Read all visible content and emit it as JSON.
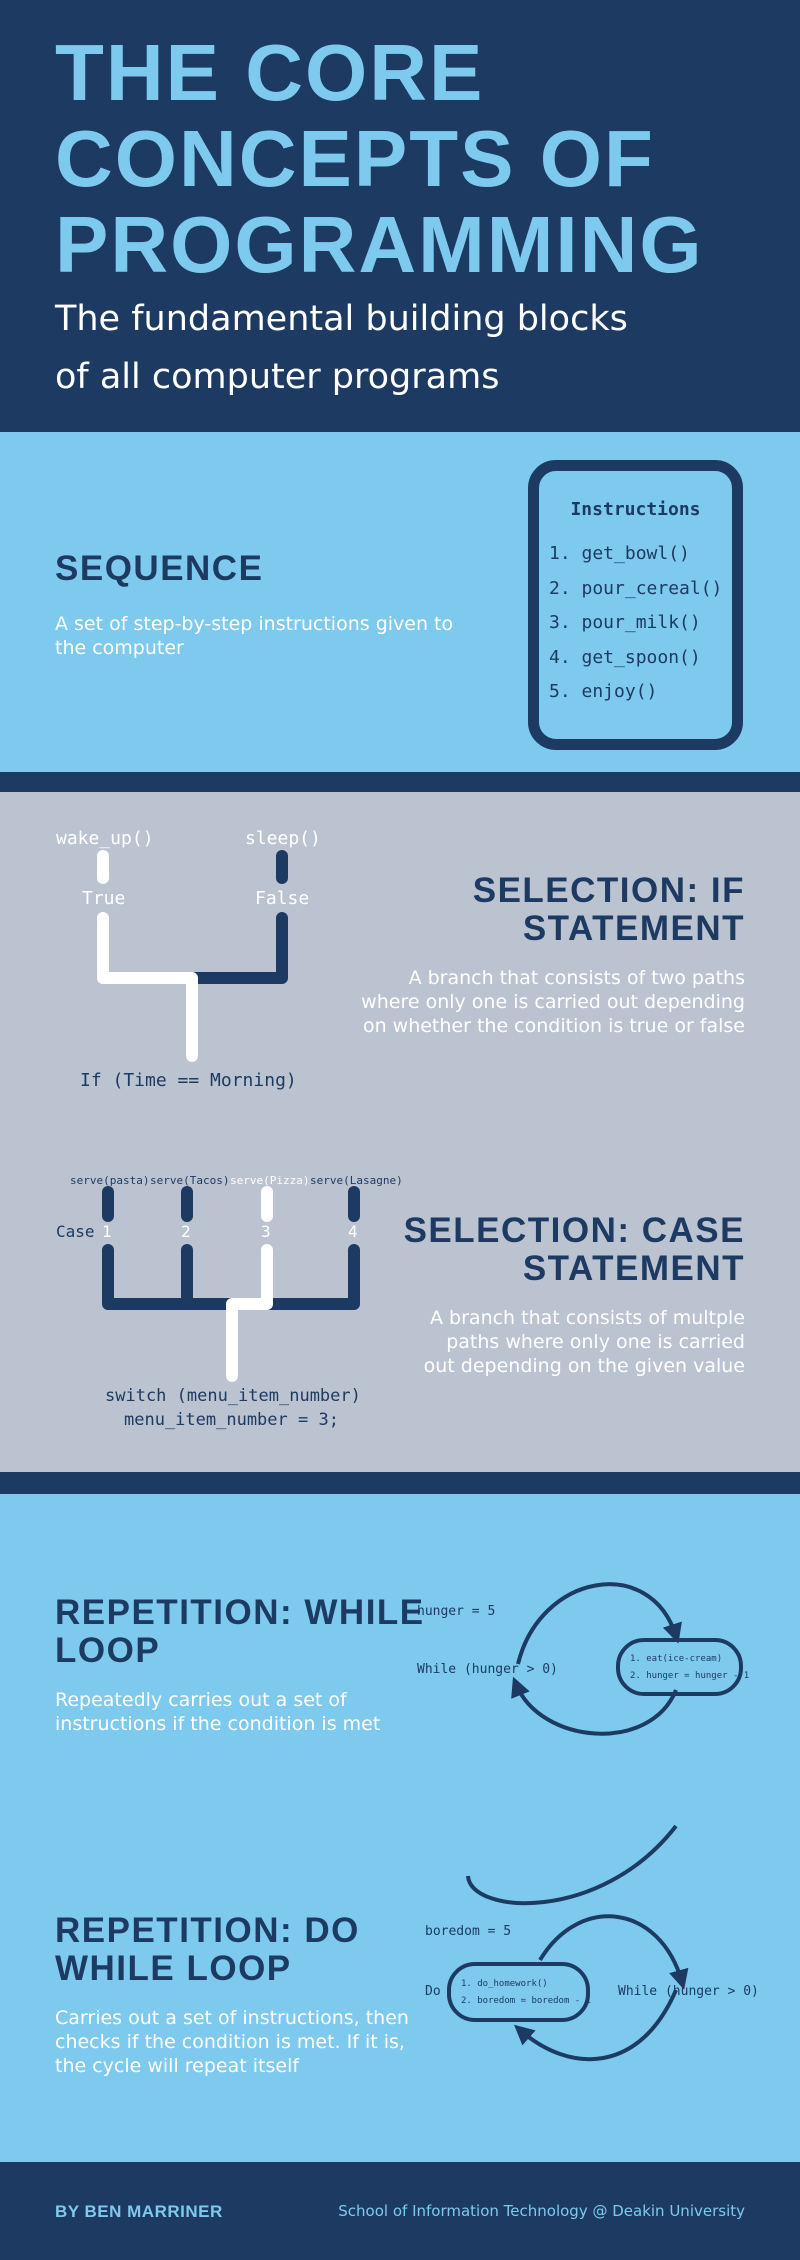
{
  "header": {
    "title_lines": [
      "THE CORE",
      "CONCEPTS OF",
      "PROGRAMMING"
    ],
    "subtitle_lines": [
      "The fundamental building blocks",
      "of all computer programs"
    ]
  },
  "sequence": {
    "title": "SEQUENCE",
    "description": "A set of step-by-step instructions given to the computer",
    "box_title": "Instructions",
    "instructions": [
      "1. get_bowl()",
      "2. pour_cereal()",
      "3. pour_milk()",
      "4. get_spoon()",
      "5. enjoy()"
    ]
  },
  "selection_if": {
    "title_lines": [
      "SELECTION: IF",
      "STATEMENT"
    ],
    "description": "A branch that consists of two paths where only one is carried out depending on whether the condition is true or false",
    "true_action": "wake_up()",
    "false_action": "sleep()",
    "true_label": "True",
    "false_label": "False",
    "condition": "If (Time == Morning)"
  },
  "selection_case": {
    "title_lines": [
      "SELECTION: CASE",
      "STATEMENT"
    ],
    "description": "A branch that consists of multple paths where only one is carried out depending on the given value",
    "actions": [
      "serve(pasta)",
      "serve(Tacos)",
      "serve(Pizza)",
      "serve(Lasagne)"
    ],
    "case_label": "Case",
    "case_numbers": [
      "1",
      "2",
      "3",
      "4"
    ],
    "switch_line": "switch (menu_item_number)",
    "assign_line": "menu_item_number = 3;"
  },
  "while_loop": {
    "title_lines": [
      "REPETITION: WHILE",
      "LOOP"
    ],
    "description": "Repeatedly carries out a set of instructions if the condition is met",
    "init": "hunger = 5",
    "condition": "While (hunger > 0)",
    "body": [
      "1. eat(ice-cream)",
      "2. hunger = hunger - 1"
    ]
  },
  "do_while_loop": {
    "title_lines": [
      "REPETITION: DO",
      "WHILE LOOP"
    ],
    "description": "Carries out a set of instructions, then checks if the condition is met. If it is, the cycle will repeat itself",
    "init": "boredom = 5",
    "do_label": "Do",
    "body": [
      "1. do_homework()",
      "2. boredom = boredom - 1"
    ],
    "condition": "While (hunger > 0)"
  },
  "footer": {
    "author": "BY BEN MARRINER",
    "school": "School of Information Technology @ Deakin University"
  },
  "colors": {
    "navy": "#1d3a63",
    "light_blue": "#7ecaee",
    "grey": "#bcc3d0",
    "white": "#ffffff"
  }
}
